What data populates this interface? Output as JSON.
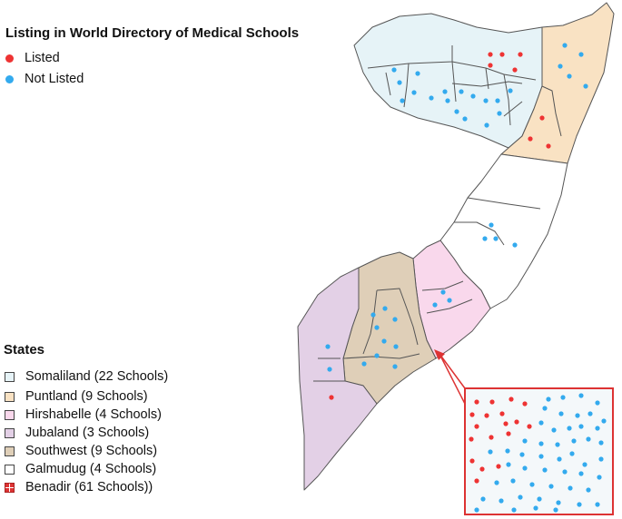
{
  "points_legend": {
    "title": "Listing in World Directory of Medical Schools",
    "items": [
      {
        "label": "Listed",
        "color": "#ee3333"
      },
      {
        "label": "Not Listed",
        "color": "#33aaee"
      }
    ]
  },
  "states_legend": {
    "title": "States",
    "items": [
      {
        "label": "Somaliland (22 Schools)",
        "color": "#e6f3f7"
      },
      {
        "label": "Puntland (9 Schools)",
        "color": "#f9e2c3"
      },
      {
        "label": "Hirshabelle (4 Schools)",
        "color": "#f9d8ec"
      },
      {
        "label": "Jubaland (3 Schools)",
        "color": "#e3d0e6"
      },
      {
        "label": "Southwest (9 Schools)",
        "color": "#dfcfb8"
      },
      {
        "label": "Galmudug (4 Schools)",
        "color": "#ffffff"
      },
      {
        "label": "Benadir (61 Schools))",
        "color": "#dd3333"
      }
    ]
  },
  "colors": {
    "listed": "#ee3333",
    "not_listed": "#33aaee",
    "border": "#555555",
    "inset_border": "#dd3333",
    "inset_fill": "#f4f8fa"
  }
}
